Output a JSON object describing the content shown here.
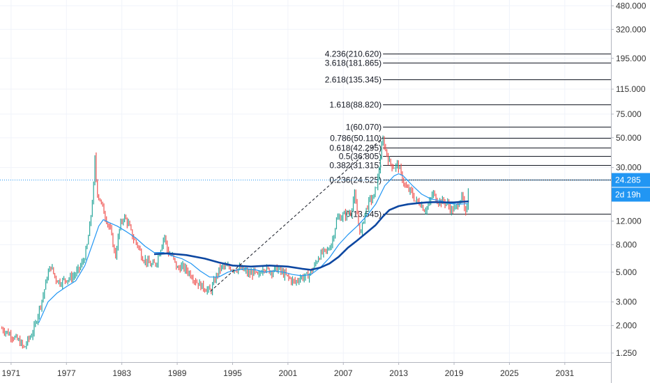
{
  "chart_data": {
    "type": "line",
    "y_scale": "log",
    "x_tick_labels": [
      "1971",
      "1977",
      "1983",
      "1989",
      "1995",
      "2001",
      "2007",
      "2013",
      "2019",
      "2025",
      "2031"
    ],
    "y_tick_labels": [
      "480.000",
      "320.000",
      "195.000",
      "115.000",
      "75.000",
      "50.000",
      "30.000",
      "12.000",
      "8.000",
      "5.000",
      "3.000",
      "2.000",
      "1.250"
    ],
    "x_range": [
      1969.8,
      2036.0
    ],
    "y_range": [
      1.07,
      530
    ],
    "grid": true,
    "current_price_label": "24.285",
    "current_price": 24.285,
    "countdown_label": "2d 19h",
    "fibonacci_levels": [
      {
        "label": "4.236(210.620)",
        "value": 210.62
      },
      {
        "label": "3.618(181.865)",
        "value": 181.865
      },
      {
        "label": "2.618(135.345)",
        "value": 135.345
      },
      {
        "label": "1.618(88.820)",
        "value": 88.82
      },
      {
        "label": "1(60.070)",
        "value": 60.07
      },
      {
        "label": "0.786(50.110)",
        "value": 50.11
      },
      {
        "label": "0.618(42.295)",
        "value": 42.295
      },
      {
        "label": "0.5(36.805)",
        "value": 36.805
      },
      {
        "label": "0.382(31.315)",
        "value": 31.315
      },
      {
        "label": "0.236(24.525)",
        "value": 24.525
      },
      {
        "label": "0(13.545)",
        "value": 13.545
      }
    ],
    "fib_line_range": [
      2011.3,
      2036.0
    ],
    "trend_line": {
      "from": [
        1992.6,
        3.6
      ],
      "to": [
        2011.3,
        50.11
      ]
    },
    "series": [
      {
        "color": "#26a69a",
        "points": [
          [
            1970.0,
            1.9
          ],
          [
            1970.5,
            1.8
          ],
          [
            1971.0,
            1.7
          ],
          [
            1971.5,
            1.6
          ],
          [
            1972.0,
            1.5
          ],
          [
            1972.4,
            1.35
          ],
          [
            1972.8,
            1.55
          ],
          [
            1973.2,
            1.7
          ],
          [
            1973.6,
            2.0
          ],
          [
            1974.0,
            2.6
          ],
          [
            1974.5,
            3.4
          ],
          [
            1974.9,
            4.6
          ],
          [
            1975.3,
            5.6
          ],
          [
            1975.8,
            4.5
          ],
          [
            1976.3,
            4.2
          ],
          [
            1976.8,
            4.4
          ],
          [
            1977.3,
            4.5
          ],
          [
            1977.8,
            4.7
          ],
          [
            1978.3,
            5.2
          ],
          [
            1978.8,
            6.0
          ],
          [
            1979.2,
            7.5
          ],
          [
            1979.6,
            12.0
          ],
          [
            1979.95,
            22.0
          ],
          [
            1980.05,
            38.0
          ],
          [
            1980.3,
            20.0
          ],
          [
            1980.8,
            16.0
          ],
          [
            1981.3,
            12.5
          ],
          [
            1981.8,
            10.0
          ],
          [
            1982.3,
            6.5
          ],
          [
            1982.8,
            11.0
          ],
          [
            1983.2,
            13.0
          ],
          [
            1983.7,
            11.5
          ],
          [
            1984.2,
            9.0
          ],
          [
            1984.7,
            8.0
          ],
          [
            1985.2,
            6.5
          ],
          [
            1985.7,
            6.0
          ],
          [
            1986.2,
            5.6
          ],
          [
            1986.7,
            5.8
          ],
          [
            1987.2,
            7.5
          ],
          [
            1987.6,
            9.5
          ],
          [
            1988.0,
            7.0
          ],
          [
            1988.5,
            6.5
          ],
          [
            1989.0,
            5.3
          ],
          [
            1989.5,
            5.5
          ],
          [
            1990.0,
            5.2
          ],
          [
            1990.5,
            4.8
          ],
          [
            1991.0,
            4.3
          ],
          [
            1991.5,
            4.0
          ],
          [
            1992.0,
            3.8
          ],
          [
            1992.6,
            3.6
          ],
          [
            1993.2,
            4.6
          ],
          [
            1993.6,
            5.3
          ],
          [
            1994.0,
            5.5
          ],
          [
            1994.6,
            5.4
          ],
          [
            1995.2,
            5.3
          ],
          [
            1995.8,
            5.3
          ],
          [
            1996.3,
            5.1
          ],
          [
            1996.8,
            4.8
          ],
          [
            1997.3,
            5.0
          ],
          [
            1997.8,
            4.6
          ],
          [
            1998.3,
            5.5
          ],
          [
            1998.8,
            5.2
          ],
          [
            1999.3,
            5.1
          ],
          [
            1999.8,
            5.3
          ],
          [
            2000.3,
            5.0
          ],
          [
            2000.8,
            4.7
          ],
          [
            2001.3,
            4.4
          ],
          [
            2001.8,
            4.2
          ],
          [
            2002.3,
            4.6
          ],
          [
            2002.8,
            4.6
          ],
          [
            2003.3,
            4.8
          ],
          [
            2003.8,
            5.4
          ],
          [
            2004.3,
            6.5
          ],
          [
            2004.8,
            7.0
          ],
          [
            2005.3,
            7.2
          ],
          [
            2005.8,
            8.5
          ],
          [
            2006.3,
            12.5
          ],
          [
            2006.8,
            13.0
          ],
          [
            2007.3,
            13.5
          ],
          [
            2007.8,
            14.0
          ],
          [
            2008.2,
            19.0
          ],
          [
            2008.6,
            12.0
          ],
          [
            2008.9,
            9.5
          ],
          [
            2009.3,
            13.5
          ],
          [
            2009.8,
            17.0
          ],
          [
            2010.3,
            18.0
          ],
          [
            2010.8,
            26.0
          ],
          [
            2011.1,
            40.0
          ],
          [
            2011.3,
            48.0
          ],
          [
            2011.7,
            38.0
          ],
          [
            2012.0,
            33.0
          ],
          [
            2012.5,
            30.0
          ],
          [
            2012.9,
            32.0
          ],
          [
            2013.3,
            26.0
          ],
          [
            2013.8,
            21.0
          ],
          [
            2014.3,
            20.0
          ],
          [
            2014.8,
            17.0
          ],
          [
            2015.3,
            16.5
          ],
          [
            2015.8,
            14.5
          ],
          [
            2016.3,
            16.0
          ],
          [
            2016.7,
            19.5
          ],
          [
            2017.2,
            17.0
          ],
          [
            2017.7,
            16.8
          ],
          [
            2018.2,
            16.5
          ],
          [
            2018.7,
            14.5
          ],
          [
            2019.2,
            15.0
          ],
          [
            2019.6,
            17.5
          ],
          [
            2019.95,
            18.0
          ],
          [
            2020.2,
            12.5
          ],
          [
            2020.45,
            17.0
          ],
          [
            2020.6,
            24.285
          ]
        ]
      },
      {
        "color": "#2196f3",
        "points": [
          [
            1974.0,
            2.1
          ],
          [
            1975.0,
            3.0
          ],
          [
            1976.0,
            3.5
          ],
          [
            1977.0,
            3.9
          ],
          [
            1978.0,
            4.3
          ],
          [
            1979.0,
            5.6
          ],
          [
            1979.8,
            8.0
          ],
          [
            1980.5,
            11.0
          ],
          [
            1981.0,
            12.3
          ],
          [
            1981.5,
            11.8
          ],
          [
            1982.5,
            11.0
          ],
          [
            1983.5,
            10.0
          ],
          [
            1984.5,
            9.0
          ],
          [
            1985.5,
            7.8
          ],
          [
            1986.5,
            7.0
          ],
          [
            1987.5,
            7.0
          ],
          [
            1988.5,
            6.6
          ],
          [
            1989.5,
            6.3
          ],
          [
            1990.5,
            5.8
          ],
          [
            1991.5,
            5.1
          ],
          [
            1992.5,
            4.6
          ],
          [
            1993.5,
            4.6
          ],
          [
            1994.5,
            5.0
          ],
          [
            1995.5,
            5.2
          ],
          [
            1996.5,
            5.3
          ],
          [
            1997.5,
            5.2
          ],
          [
            1998.5,
            5.0
          ],
          [
            1999.5,
            5.1
          ],
          [
            2000.5,
            5.0
          ],
          [
            2001.5,
            4.8
          ],
          [
            2002.5,
            4.7
          ],
          [
            2003.5,
            4.8
          ],
          [
            2004.5,
            5.4
          ],
          [
            2005.5,
            6.4
          ],
          [
            2006.5,
            8.0
          ],
          [
            2007.5,
            9.5
          ],
          [
            2008.5,
            11.0
          ],
          [
            2009.5,
            13.0
          ],
          [
            2010.5,
            16.0
          ],
          [
            2011.5,
            22.0
          ],
          [
            2012.5,
            26.0
          ],
          [
            2013.0,
            27.0
          ],
          [
            2013.5,
            26.0
          ],
          [
            2014.5,
            22.0
          ],
          [
            2015.5,
            19.0
          ],
          [
            2016.5,
            17.5
          ],
          [
            2017.5,
            17.0
          ],
          [
            2018.5,
            16.2
          ],
          [
            2019.5,
            16.0
          ],
          [
            2020.5,
            16.2
          ]
        ]
      },
      {
        "color": "#0d47a1",
        "points": [
          [
            1986.5,
            6.8
          ],
          [
            1988.0,
            6.9
          ],
          [
            1990.0,
            6.7
          ],
          [
            1992.0,
            6.3
          ],
          [
            1993.5,
            5.9
          ],
          [
            1995.0,
            5.6
          ],
          [
            1997.0,
            5.5
          ],
          [
            1999.0,
            5.6
          ],
          [
            2001.0,
            5.5
          ],
          [
            2002.5,
            5.3
          ],
          [
            2003.5,
            5.2
          ],
          [
            2004.5,
            5.4
          ],
          [
            2005.5,
            5.8
          ],
          [
            2006.5,
            6.5
          ],
          [
            2007.5,
            7.6
          ],
          [
            2008.5,
            8.6
          ],
          [
            2009.5,
            9.8
          ],
          [
            2010.5,
            11.2
          ],
          [
            2011.3,
            13.0
          ],
          [
            2012.0,
            14.5
          ],
          [
            2013.0,
            15.5
          ],
          [
            2014.0,
            16.0
          ],
          [
            2015.0,
            16.3
          ],
          [
            2016.0,
            16.5
          ],
          [
            2017.0,
            16.6
          ],
          [
            2018.0,
            16.5
          ],
          [
            2019.0,
            16.5
          ],
          [
            2020.0,
            16.7
          ],
          [
            2020.6,
            16.8
          ]
        ]
      }
    ]
  },
  "colors": {
    "up": "#26a69a",
    "down": "#ef5350",
    "ma_fast": "#2196f3",
    "ma_slow": "#0d47a1",
    "badge_price": "#2196f3",
    "badge_countdown": "#2196f3"
  }
}
